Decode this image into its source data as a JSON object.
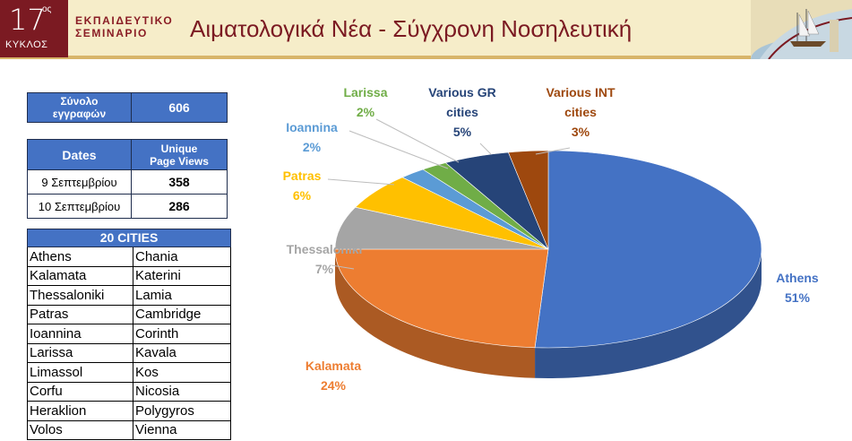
{
  "header": {
    "badge_number": "17",
    "badge_superscript": "ος",
    "badge_caption": "ΚΥΚΛΟΣ",
    "seminar_line1": "ΕΚΠΑΙΔΕΥΤΙΚΟ",
    "seminar_line2": "ΣΕΜΙΝΑΡΙΟ",
    "title": "Αιματολογικά Νέα - Σύγχρονη Νοσηλευτική"
  },
  "registrations": {
    "label_line1": "Σύνολο",
    "label_line2": "εγγραφών",
    "value": "606"
  },
  "page_views": {
    "col_dates": "Dates",
    "col_views_line1": "Unique",
    "col_views_line2": "Page Views",
    "rows": [
      {
        "date": "9 Σεπτεμβρίου",
        "views": "358"
      },
      {
        "date": "10 Σεπτεμβρίου",
        "views": "286"
      }
    ]
  },
  "cities_table": {
    "title": "20  CITIES",
    "rows": [
      [
        "Athens",
        "Chania"
      ],
      [
        "Kalamata",
        "Katerini"
      ],
      [
        "Thessaloniki",
        "Lamia"
      ],
      [
        "Patras",
        "Cambridge"
      ],
      [
        "Ioannina",
        "Corinth"
      ],
      [
        "Larissa",
        "Kavala"
      ],
      [
        "Limassol",
        "Kos"
      ],
      [
        "Corfu",
        "Nicosia"
      ],
      [
        "Heraklion",
        "Polygyros"
      ],
      [
        "Volos",
        "Vienna"
      ]
    ]
  },
  "chart_data": {
    "type": "pie",
    "style": "3d",
    "slices": [
      {
        "label": "Athens",
        "value": 51,
        "text": "51%",
        "color": "#4472c4"
      },
      {
        "label": "Kalamata",
        "value": 24,
        "text": "24%",
        "color": "#ed7d31"
      },
      {
        "label": "Thessaloniki",
        "value": 7,
        "text": "7%",
        "color": "#a5a5a5"
      },
      {
        "label": "Patras",
        "value": 6,
        "text": "6%",
        "color": "#ffc000"
      },
      {
        "label": "Ioannina",
        "value": 2,
        "text": "2%",
        "color": "#5b9bd5"
      },
      {
        "label": "Larissa",
        "value": 2,
        "text": "2%",
        "color": "#70ad47"
      },
      {
        "label": "Various GR cities",
        "value": 5,
        "text": "5%",
        "color": "#264478"
      },
      {
        "label": "Various INT cities",
        "value": 3,
        "text": "3%",
        "color": "#9e480e"
      }
    ]
  }
}
